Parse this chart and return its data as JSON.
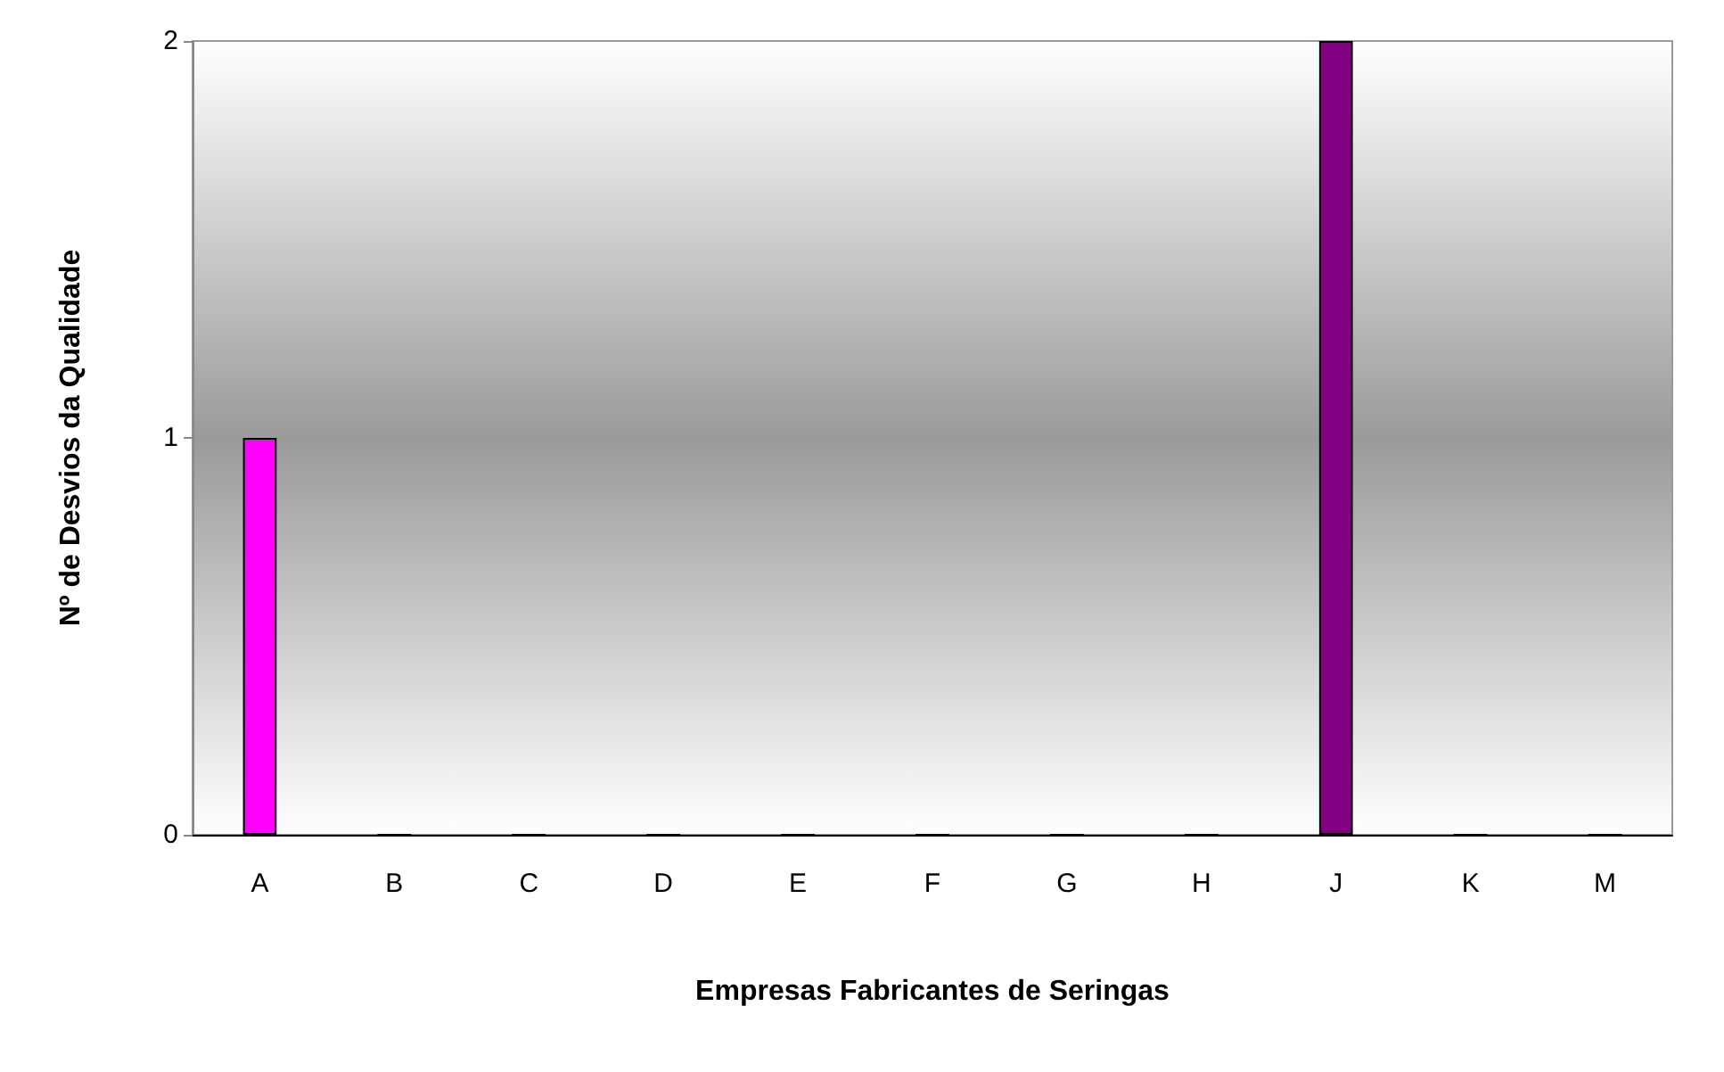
{
  "chart_data": {
    "type": "bar",
    "xlabel": "Empresas Fabricantes de Seringas",
    "ylabel": "Nº de Desvios da Qualidade",
    "categories": [
      "A",
      "B",
      "C",
      "D",
      "E",
      "F",
      "G",
      "H",
      "J",
      "K",
      "M"
    ],
    "values": [
      1,
      0,
      0,
      0,
      0,
      0,
      0,
      0,
      2,
      0,
      0
    ],
    "colors": [
      "#ff00ff",
      "#cccc00",
      "#00cc00",
      "#00cccc",
      "#0000cc",
      "#cc6600",
      "#cc0000",
      "#b38fe0",
      "#800080",
      "#00cccc",
      "#cc00cc"
    ],
    "ylim": [
      0,
      2
    ],
    "yticks": [
      0,
      1,
      2
    ],
    "grid": false
  }
}
